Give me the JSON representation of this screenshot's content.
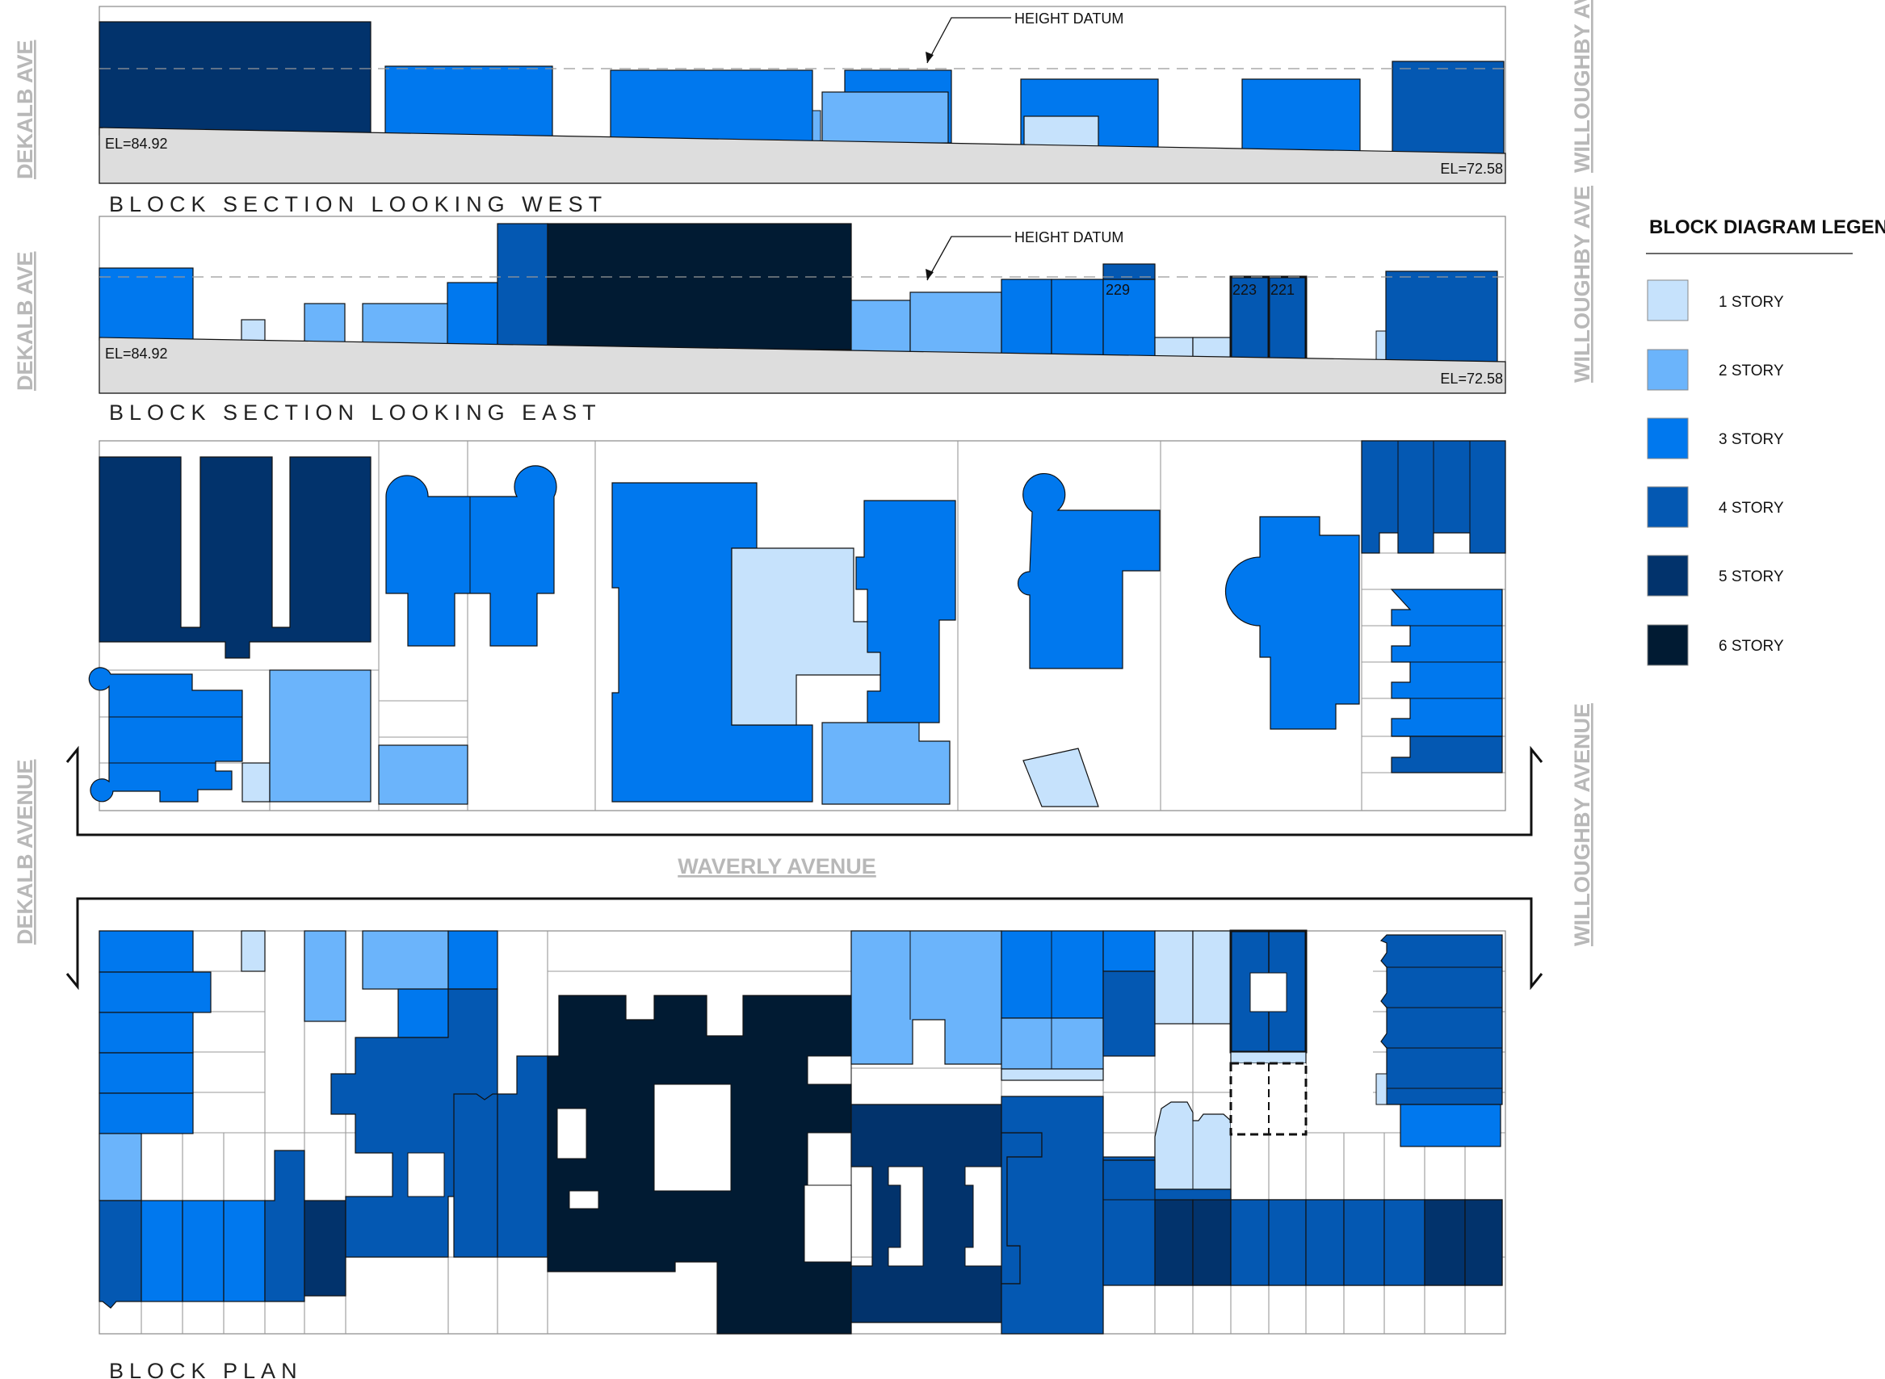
{
  "colors": {
    "story_1": "#c6e2fc",
    "story_2": "#6bb4fb",
    "story_3": "#0078ee",
    "story_4": "#0458b2",
    "story_5": "#02336c",
    "story_6": "#011b33",
    "ground": "#dddddd",
    "street_label": "#b8b8b8"
  },
  "streets": {
    "dekalb_ave": "DEKALB AVE",
    "willoughby_ave": "WILLOUGHBY AVE",
    "dekalb_avenue": "DEKALB AVENUE",
    "willoughby_avenue": "WILLOUGHBY AVENUE",
    "waverly_avenue": "WAVERLY AVENUE"
  },
  "section_west": {
    "caption": "BLOCK SECTION LOOKING WEST",
    "datum_label": "HEIGHT DATUM",
    "elev_left": "EL=84.92",
    "elev_right": "EL=72.58"
  },
  "section_east": {
    "caption": "BLOCK SECTION LOOKING EAST",
    "datum_label": "HEIGHT DATUM",
    "elev_left": "EL=84.92",
    "elev_right": "EL=72.58",
    "addresses": [
      "229",
      "223",
      "221"
    ]
  },
  "plan": {
    "caption": "BLOCK PLAN"
  },
  "legend": {
    "title": "BLOCK DIAGRAM LEGEND",
    "items": [
      {
        "label": "1 STORY",
        "color": "#c6e2fc"
      },
      {
        "label": "2 STORY",
        "color": "#6bb4fb"
      },
      {
        "label": "3 STORY",
        "color": "#0078ee"
      },
      {
        "label": "4 STORY",
        "color": "#0458b2"
      },
      {
        "label": "5 STORY",
        "color": "#02336c"
      },
      {
        "label": "6 STORY",
        "color": "#011b33"
      }
    ]
  }
}
